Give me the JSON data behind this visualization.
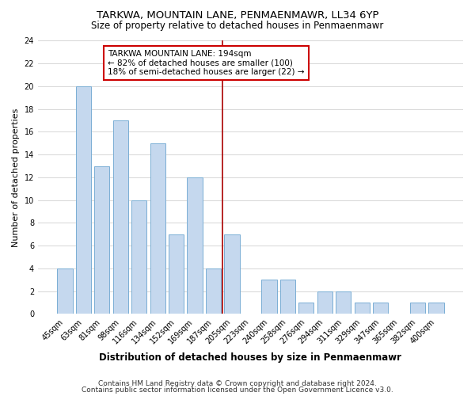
{
  "title": "TARKWA, MOUNTAIN LANE, PENMAENMAWR, LL34 6YP",
  "subtitle": "Size of property relative to detached houses in Penmaenmawr",
  "xlabel": "Distribution of detached houses by size in Penmaenmawr",
  "ylabel": "Number of detached properties",
  "bins": [
    "45sqm",
    "63sqm",
    "81sqm",
    "98sqm",
    "116sqm",
    "134sqm",
    "152sqm",
    "169sqm",
    "187sqm",
    "205sqm",
    "223sqm",
    "240sqm",
    "258sqm",
    "276sqm",
    "294sqm",
    "311sqm",
    "329sqm",
    "347sqm",
    "365sqm",
    "382sqm",
    "400sqm"
  ],
  "values": [
    4,
    20,
    13,
    17,
    10,
    15,
    7,
    12,
    4,
    7,
    0,
    3,
    3,
    1,
    2,
    2,
    1,
    1,
    0,
    1,
    1
  ],
  "bar_color": "#c5d8ee",
  "bar_edge_color": "#7aaed4",
  "vline_color": "#aa0000",
  "vline_x_index": 8.5,
  "annotation_title": "TARKWA MOUNTAIN LANE: 194sqm",
  "annotation_line1": "← 82% of detached houses are smaller (100)",
  "annotation_line2": "18% of semi-detached houses are larger (22) →",
  "annotation_box_color": "#ffffff",
  "annotation_box_edgecolor": "#cc0000",
  "ylim": [
    0,
    24
  ],
  "yticks": [
    0,
    2,
    4,
    6,
    8,
    10,
    12,
    14,
    16,
    18,
    20,
    22,
    24
  ],
  "footer1": "Contains HM Land Registry data © Crown copyright and database right 2024.",
  "footer2": "Contains public sector information licensed under the Open Government Licence v3.0.",
  "title_fontsize": 9.5,
  "subtitle_fontsize": 8.5,
  "xlabel_fontsize": 8.5,
  "ylabel_fontsize": 8,
  "tick_fontsize": 7,
  "annotation_fontsize": 7.5,
  "footer_fontsize": 6.5
}
